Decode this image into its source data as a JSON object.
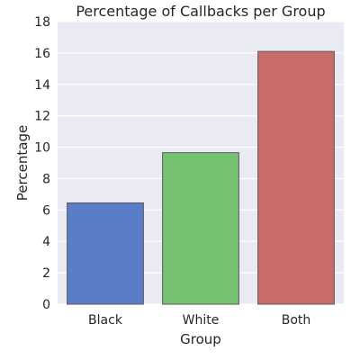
{
  "chart_data": {
    "type": "bar",
    "title": "Percentage of Callbacks per Group",
    "xlabel": "Group",
    "ylabel": "Percentage",
    "categories": [
      "Black",
      "White",
      "Both"
    ],
    "values": [
      6.45,
      9.65,
      16.1
    ],
    "colors": [
      "#5a7dc7",
      "#77c172",
      "#c76b6b"
    ],
    "ylim": [
      0,
      18
    ],
    "yticks": [
      0,
      2,
      4,
      6,
      8,
      10,
      12,
      14,
      16,
      18
    ],
    "grid": true,
    "background": "#eaeaf2",
    "grid_color": "#ffffff"
  }
}
